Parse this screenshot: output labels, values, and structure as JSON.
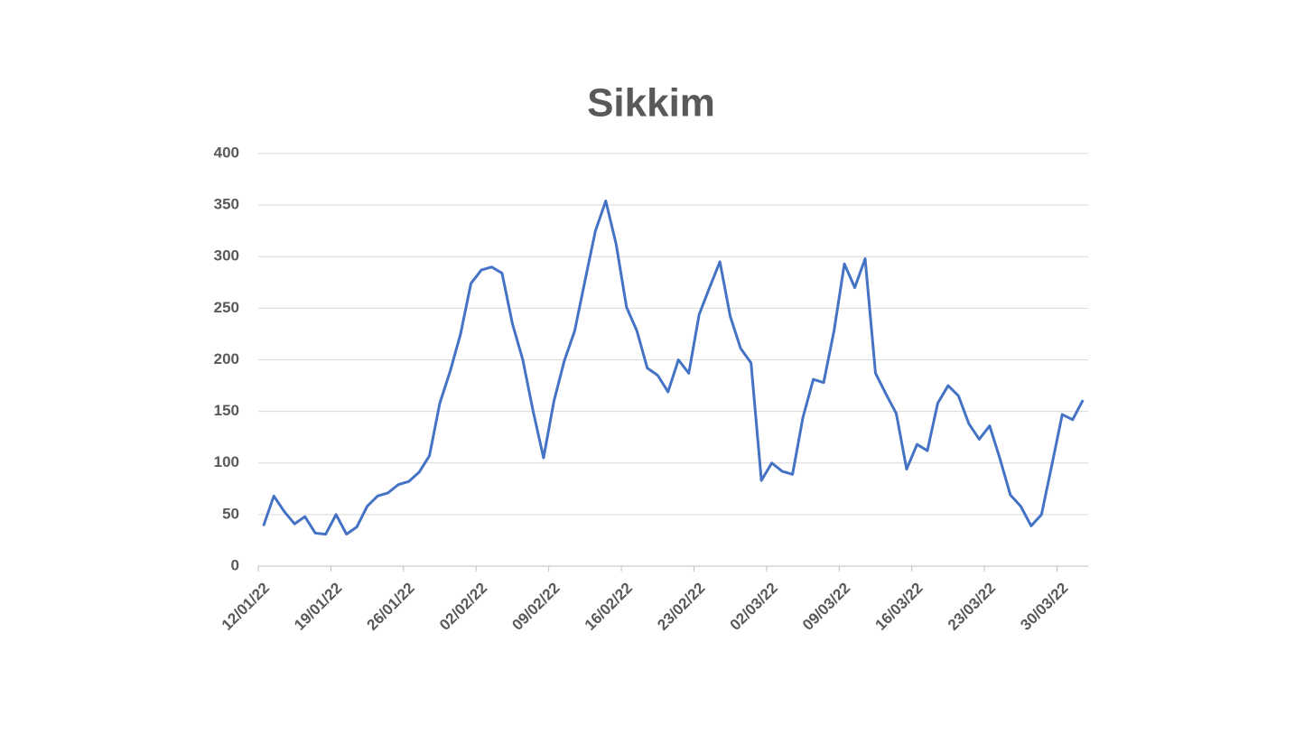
{
  "chart_data": {
    "type": "line",
    "title": "Sikkim",
    "categories": [
      "12/01/22",
      null,
      null,
      null,
      null,
      null,
      null,
      "19/01/22",
      null,
      null,
      null,
      null,
      null,
      null,
      "26/01/22",
      null,
      null,
      null,
      null,
      null,
      null,
      "02/02/22",
      null,
      null,
      null,
      null,
      null,
      null,
      "09/02/22",
      null,
      null,
      null,
      null,
      null,
      null,
      "16/02/22",
      null,
      null,
      null,
      null,
      null,
      null,
      "23/02/22",
      null,
      null,
      null,
      null,
      null,
      null,
      "02/03/22",
      null,
      null,
      null,
      null,
      null,
      null,
      "09/03/22",
      null,
      null,
      null,
      null,
      null,
      null,
      "16/03/22",
      null,
      null,
      null,
      null,
      null,
      null,
      "23/03/22",
      null,
      null,
      null,
      null,
      null,
      null,
      "30/03/22",
      null,
      null
    ],
    "series": [
      {
        "name": "Sikkim",
        "color": "#4472c4",
        "values": [
          39,
          68,
          53,
          41,
          48,
          32,
          31,
          50,
          31,
          38,
          58,
          68,
          71,
          79,
          82,
          91,
          107,
          158,
          189,
          225,
          274,
          287,
          290,
          284,
          235,
          200,
          150,
          105,
          160,
          199,
          228,
          277,
          325,
          354,
          312,
          251,
          228,
          192,
          185,
          169,
          200,
          187,
          244,
          270,
          295,
          242,
          211,
          197,
          83,
          100,
          92,
          89,
          144,
          181,
          178,
          228,
          293,
          270,
          298,
          187,
          167,
          148,
          94,
          118,
          112,
          158,
          175,
          165,
          138,
          123,
          136,
          104,
          69,
          58,
          39,
          50,
          98,
          147,
          142,
          161
        ]
      }
    ],
    "ylim": [
      0,
      400
    ],
    "yticks": [
      0,
      50,
      100,
      150,
      200,
      250,
      300,
      350,
      400
    ],
    "grid": true
  }
}
